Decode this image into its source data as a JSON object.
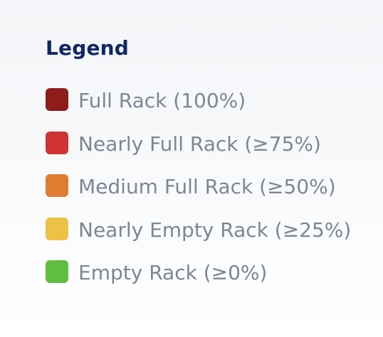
{
  "legend": {
    "title": "Legend",
    "items": [
      {
        "label": "Full Rack (100%)",
        "color": "#8f1b1b"
      },
      {
        "label": "Nearly Full Rack (≥75%)",
        "color": "#cf3333"
      },
      {
        "label": "Medium Full Rack (≥50%)",
        "color": "#e07c32"
      },
      {
        "label": "Nearly Empty Rack (≥25%)",
        "color": "#ecc246"
      },
      {
        "label": "Empty Rack (≥0%)",
        "color": "#5fbe3d"
      }
    ]
  }
}
